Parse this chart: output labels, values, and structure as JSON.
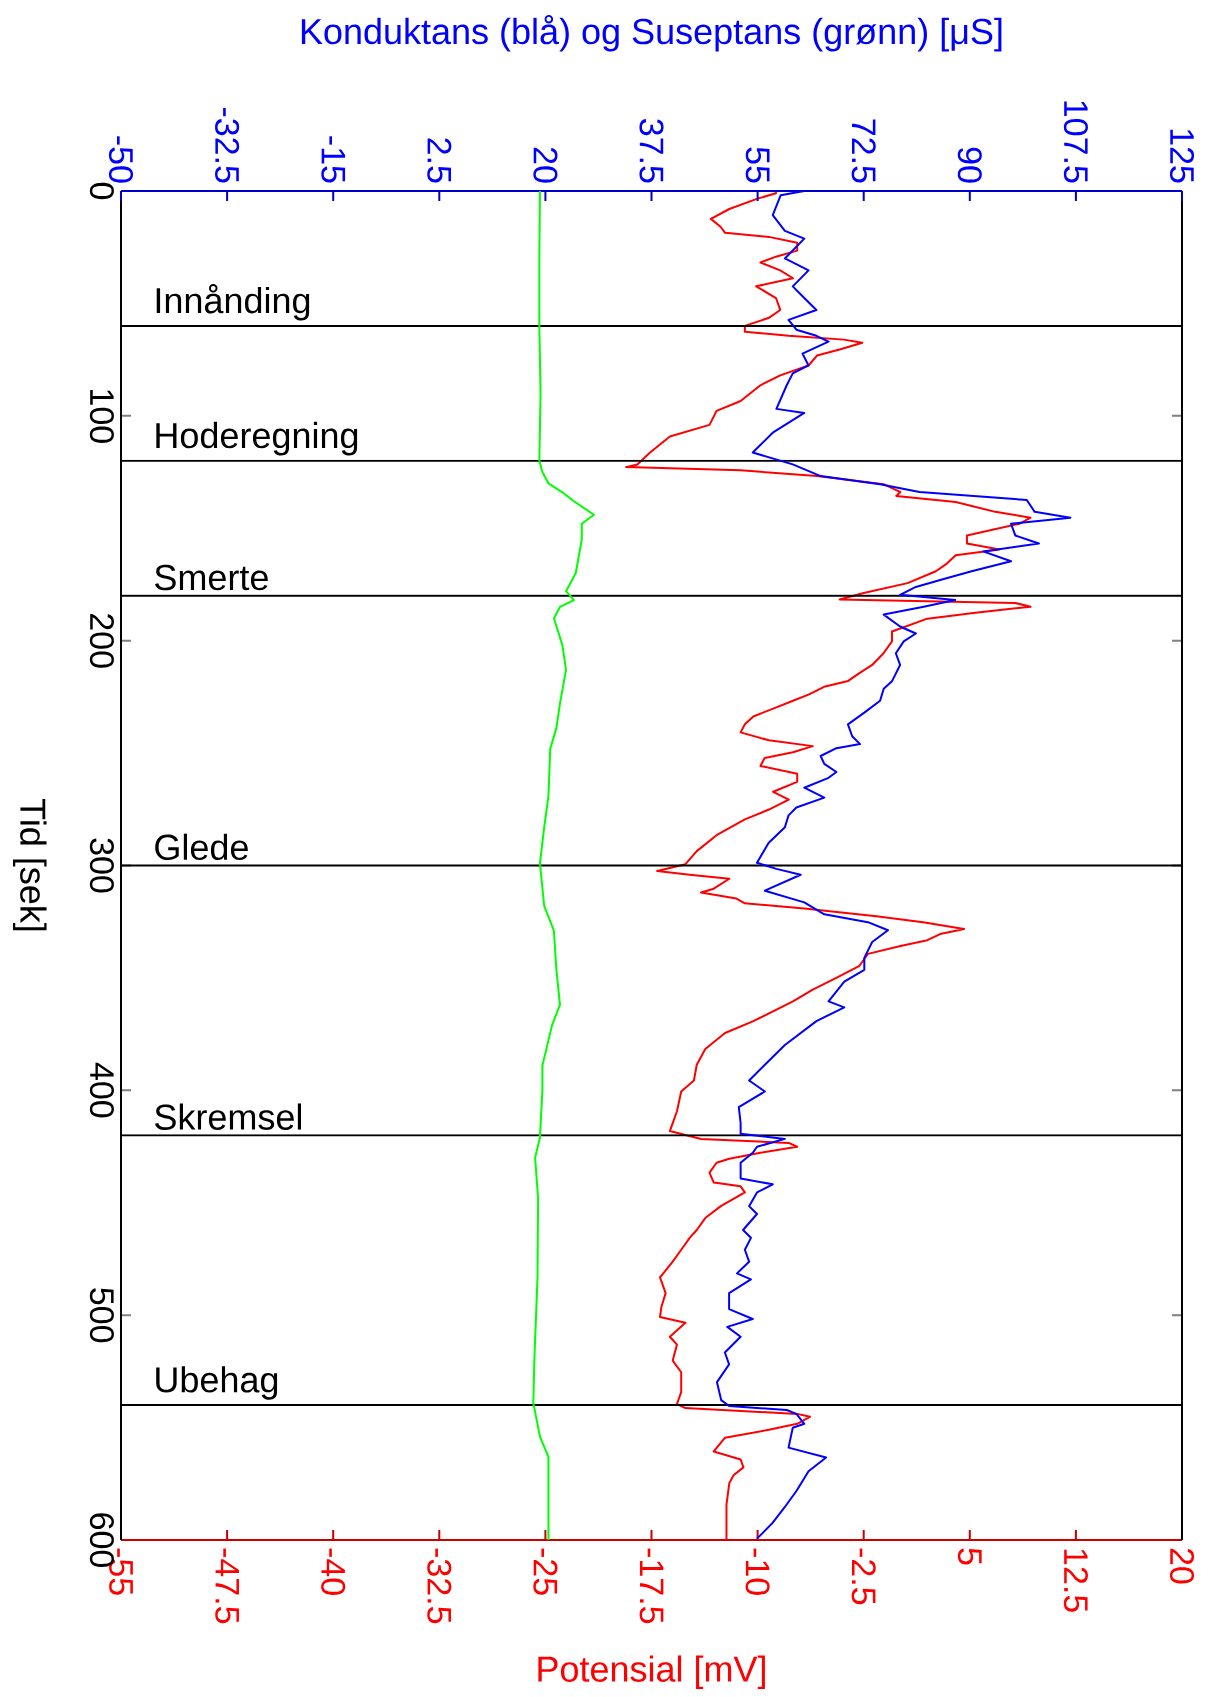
{
  "chart_data": {
    "type": "line",
    "ylabel": "Tid [sek]",
    "x2label": "Konduktans (blå) og Suseptans (grønn) [μS]",
    "xlabel": "Potensial [mV]",
    "ylim": [
      600,
      0
    ],
    "yticks": [
      0,
      100,
      200,
      300,
      400,
      500,
      600
    ],
    "x2lim": [
      -50,
      125
    ],
    "x2ticks": [
      -50,
      -32.5,
      -15,
      2.5,
      20,
      37.5,
      55,
      72.5,
      90,
      107.5,
      125
    ],
    "xlim": [
      -55,
      20
    ],
    "xticks": [
      -55,
      -47.5,
      -40,
      -32.5,
      -25,
      -17.5,
      -10,
      -2.5,
      5,
      12.5,
      20
    ],
    "grid": false,
    "marker": "none",
    "ref_lines": [
      {
        "axis": "y",
        "value": 60,
        "label": "Innånding",
        "color": "#000000"
      },
      {
        "axis": "y",
        "value": 120,
        "label": "Hoderegning",
        "color": "#000000"
      },
      {
        "axis": "y",
        "value": 180,
        "label": "Smerte",
        "color": "#000000"
      },
      {
        "axis": "y",
        "value": 300,
        "label": "Glede",
        "color": "#000000"
      },
      {
        "axis": "y",
        "value": 420,
        "label": "Skremsel",
        "color": "#000000"
      },
      {
        "axis": "y",
        "value": 540,
        "label": "Ubehag",
        "color": "#000000"
      }
    ],
    "series": [
      {
        "color": "#00ff00",
        "axis": "x2",
        "values": [
          0,
          30,
          60,
          90,
          120,
          125,
          130,
          134,
          138,
          144,
          148,
          155,
          164,
          170,
          175,
          178,
          182,
          185,
          190,
          202,
          213,
          228,
          239,
          248,
          269,
          283,
          299,
          318,
          329,
          346,
          362,
          371,
          389,
          400,
          421,
          430,
          448,
          483,
          518,
          539,
          554,
          563,
          600
        ],
        "x": [
          19.1,
          19.0,
          19.0,
          19.2,
          19.0,
          19.5,
          20.5,
          22.8,
          24.7,
          28.0,
          26.0,
          26.0,
          25.4,
          25.0,
          24.0,
          23.4,
          24.7,
          22.4,
          21.4,
          22.8,
          23.4,
          22.4,
          21.8,
          20.8,
          20.5,
          19.8,
          19.1,
          19.8,
          21.4,
          21.8,
          22.4,
          21.1,
          19.5,
          19.5,
          19.1,
          18.3,
          18.8,
          18.7,
          18.2,
          18.0,
          19.1,
          20.5,
          20.5
        ]
      },
      {
        "color": "#0000ff",
        "axis": "x2",
        "values": [
          0,
          1.9,
          10.7,
          17.7,
          21.2,
          30,
          35.3,
          42.4,
          47.6,
          52.9,
          57.3,
          61.7,
          64.4,
          67,
          72.3,
          77.6,
          81.1,
          86.4,
          96.9,
          98.7,
          107.5,
          116.3,
          121.6,
          126.8,
          130.4,
          133.9,
          137.4,
          142.7,
          145.3,
          148,
          153.2,
          156.8,
          160.3,
          164.7,
          169.1,
          172.6,
          176.1,
          179.6,
          181.9,
          184.9,
          188.4,
          193.7,
          196.8,
          200.3,
          205.6,
          210.8,
          217.9,
          221.4,
          226.7,
          232,
          237.2,
          242.5,
          246,
          247.8,
          251.3,
          254.8,
          258.4,
          261,
          265.4,
          269.8,
          274.2,
          277.7,
          283,
          290,
          298.8,
          301.5,
          304.1,
          311.2,
          316.4,
          321.7,
          325.2,
          328.8,
          334,
          341.1,
          346.4,
          351.6,
          360.4,
          363.1,
          369.2,
          379.8,
          388.6,
          395.6,
          400.5,
          407.5,
          414.6,
          419.3,
          421.6,
          425.1,
          427.8,
          432.2,
          439.2,
          441.8,
          445.4,
          451.5,
          455,
          462.1,
          465.6,
          470.9,
          476.2,
          481.4,
          484.1,
          490.2,
          497.3,
          501.7,
          505.2,
          509.6,
          516.6,
          521.9,
          529.8,
          537.8,
          540.4,
          542.2,
          543.9,
          548.3,
          550.1,
          558.9,
          563.3,
          569.4,
          578.2,
          585.3,
          592.3,
          599.4
        ],
        "x": [
          62.7,
          58.8,
          57.5,
          59.5,
          62.7,
          59.5,
          63.4,
          60.8,
          62.7,
          64.7,
          60.1,
          61.4,
          64.7,
          66.7,
          62.4,
          63.4,
          60.8,
          59.8,
          58.1,
          62.7,
          57.5,
          54.2,
          60.8,
          65.4,
          75.2,
          81.7,
          99.4,
          100.7,
          106.6,
          96.8,
          97.5,
          101.4,
          92.2,
          96.8,
          90.3,
          85.7,
          81.1,
          78.5,
          87.6,
          82.4,
          75.8,
          78.5,
          81.1,
          79.1,
          77.8,
          78.5,
          77.2,
          75.8,
          75.2,
          72.6,
          69.9,
          70.6,
          71.9,
          68.0,
          65.4,
          66.0,
          68.0,
          66.7,
          62.7,
          66.0,
          61.4,
          60.1,
          59.5,
          56.8,
          54.9,
          58.1,
          62.1,
          56.2,
          62.7,
          66.0,
          73.2,
          76.5,
          73.9,
          72.6,
          72.6,
          69.3,
          66.7,
          69.3,
          64.7,
          59.5,
          56.2,
          53.6,
          56.2,
          51.9,
          52.2,
          52.2,
          59.5,
          54.9,
          54.2,
          52.2,
          52.2,
          57.5,
          54.9,
          53.6,
          54.9,
          52.6,
          53.9,
          52.9,
          53.6,
          51.6,
          53.9,
          50.3,
          50.3,
          54.2,
          50.0,
          52.2,
          49.6,
          50.3,
          48.3,
          49.0,
          50.3,
          59.8,
          61.4,
          62.7,
          60.8,
          60.1,
          66.3,
          63.4,
          61.4,
          59.5,
          57.5,
          54.9
        ]
      },
      {
        "color": "#ff0000",
        "values": [
          0,
          1,
          3.6,
          8,
          12.4,
          16,
          18.6,
          20.4,
          23,
          26.5,
          29.2,
          31.8,
          35.3,
          38.8,
          42.4,
          47.6,
          52.9,
          56.4,
          60,
          62.6,
          64.4,
          66.1,
          67.5,
          70.5,
          73.2,
          77.6,
          82,
          86.4,
          93.4,
          97.8,
          104,
          109.2,
          116.3,
          121.6,
          122.8,
          124.2,
          126.8,
          130.4,
          133.9,
          135.6,
          138.3,
          142.7,
          145.3,
          148,
          153.2,
          156.8,
          159.4,
          162,
          165.6,
          169.1,
          174.4,
          178.8,
          181.7,
          183.2,
          184.9,
          187.6,
          190.2,
          195.9,
          200.3,
          205.6,
          210.8,
          214.4,
          217.9,
          220.5,
          224,
          226.7,
          230.2,
          233.7,
          237.2,
          240.8,
          244.3,
          246.9,
          249.6,
          252.2,
          255.7,
          259.2,
          262.8,
          267.2,
          270.7,
          275.1,
          279.5,
          286.5,
          293.6,
          299.4,
          302.4,
          304.1,
          305.9,
          310.3,
          312,
          314.7,
          316.8,
          319.1,
          322.6,
          325.2,
          328.2,
          330.5,
          333.2,
          335.8,
          339.3,
          344.6,
          349.9,
          355.2,
          360.4,
          369.2,
          374.5,
          381.6,
          388.6,
          395.6,
          400.5,
          409.3,
          414.6,
          418.1,
          421.6,
          423.4,
          425.1,
          427.8,
          430.4,
          432.2,
          436.6,
          441,
          442.7,
          445.4,
          451.5,
          456.8,
          462.1,
          465.6,
          470.9,
          476.2,
          483.2,
          490.2,
          496.4,
          500.8,
          503.4,
          509.6,
          513.1,
          520.2,
          525.4,
          534.2,
          539.5,
          541.3,
          543.9,
          545.2,
          548.3,
          551,
          554.5,
          560.6,
          564.2,
          567.7,
          571.2,
          574.7,
          584.4,
          600
        ],
        "x": [
          -8.7,
          -8.7,
          -10.1,
          -12.0,
          -13.3,
          -12.6,
          -12.3,
          -9.2,
          -7.2,
          -7.2,
          -8.7,
          -9.8,
          -8.4,
          -7.5,
          -10.1,
          -8.7,
          -8.4,
          -9.2,
          -10.9,
          -10.9,
          -7.8,
          -3.9,
          -2.6,
          -4.2,
          -5.8,
          -6.4,
          -8.4,
          -9.8,
          -11.2,
          -12.9,
          -13.4,
          -16.2,
          -17.6,
          -18.5,
          -19.3,
          -11.2,
          -5.8,
          -1.1,
          0.1,
          -0.2,
          4.0,
          6.8,
          9.3,
          8.5,
          4.8,
          4.8,
          7.1,
          4.0,
          3.4,
          2.6,
          0.6,
          -2.5,
          -4.2,
          8.2,
          9.3,
          5.4,
          2.0,
          -0.5,
          -0.5,
          -1.1,
          -1.9,
          -2.8,
          -3.6,
          -5.3,
          -6.4,
          -7.5,
          -8.9,
          -10.3,
          -10.9,
          -11.2,
          -9.2,
          -6.1,
          -7.5,
          -9.5,
          -9.8,
          -7.2,
          -7.2,
          -8.9,
          -7.8,
          -9.2,
          -10.9,
          -12.9,
          -14.3,
          -15.1,
          -17.1,
          -14.8,
          -12.0,
          -13.1,
          -14.0,
          -11.5,
          -10.9,
          -6.7,
          -1.6,
          1.7,
          4.6,
          2.9,
          2.0,
          0.1,
          -2.2,
          -2.8,
          -4.4,
          -6.1,
          -7.5,
          -10.3,
          -12.3,
          -13.7,
          -14.3,
          -14.5,
          -15.4,
          -15.7,
          -16.0,
          -16.2,
          -14.0,
          -7.8,
          -7.2,
          -9.8,
          -12.0,
          -12.9,
          -13.4,
          -13.1,
          -11.2,
          -10.9,
          -12.6,
          -13.7,
          -14.3,
          -14.8,
          -15.4,
          -16.0,
          -16.9,
          -16.5,
          -16.8,
          -16.9,
          -15.1,
          -16.2,
          -15.7,
          -16.0,
          -15.4,
          -15.4,
          -15.7,
          -15.1,
          -7.2,
          -6.3,
          -7.2,
          -9.2,
          -12.3,
          -13.1,
          -11.2,
          -11.0,
          -11.7,
          -12.0,
          -12.2,
          -12.2
        ]
      }
    ]
  }
}
